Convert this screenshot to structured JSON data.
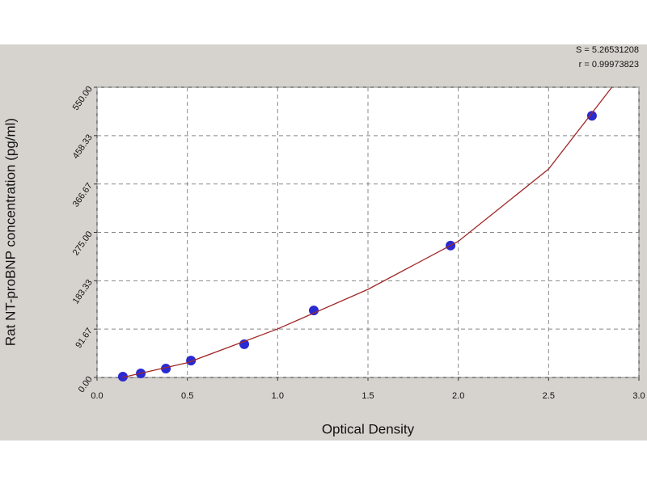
{
  "chart_data": {
    "type": "scatter",
    "x_label": "Optical Density",
    "y_label": "Rat NT-proBNP concentration (pg/ml)",
    "annotations": [
      "S = 5.26531208",
      "r = 0.99973823"
    ],
    "xlim": [
      0,
      3
    ],
    "ylim": [
      0,
      550
    ],
    "xticks": [
      {
        "value": 0,
        "label": "0.0"
      },
      {
        "value": 0.5,
        "label": "0.5"
      },
      {
        "value": 1,
        "label": "1.0"
      },
      {
        "value": 1.5,
        "label": "1.5"
      },
      {
        "value": 2,
        "label": "2.0"
      },
      {
        "value": 2.5,
        "label": "2.5"
      },
      {
        "value": 3,
        "label": "3.0"
      }
    ],
    "yticks": [
      {
        "value": 0,
        "label": "0.00"
      },
      {
        "value": 91.67,
        "label": "91.67"
      },
      {
        "value": 183.33,
        "label": "183.33"
      },
      {
        "value": 275,
        "label": "275.00"
      },
      {
        "value": 366.67,
        "label": "366.67"
      },
      {
        "value": 458.33,
        "label": "458.33"
      },
      {
        "value": 550,
        "label": "550.00"
      }
    ],
    "grid": true,
    "series": [
      {
        "type": "scatter",
        "color": "#2a2ad0",
        "x": [
          0.143,
          0.242,
          0.381,
          0.52,
          0.815,
          1.2,
          1.957,
          2.74
        ],
        "values": [
          1.5,
          7.7,
          16.8,
          32,
          63,
          127,
          250,
          496
        ]
      },
      {
        "type": "line",
        "color": "#a02828",
        "x": [
          0.14,
          0.5,
          1.0,
          1.5,
          2.0,
          2.5,
          2.85
        ],
        "values": [
          0,
          28,
          92,
          167,
          258,
          395,
          550
        ]
      }
    ]
  }
}
